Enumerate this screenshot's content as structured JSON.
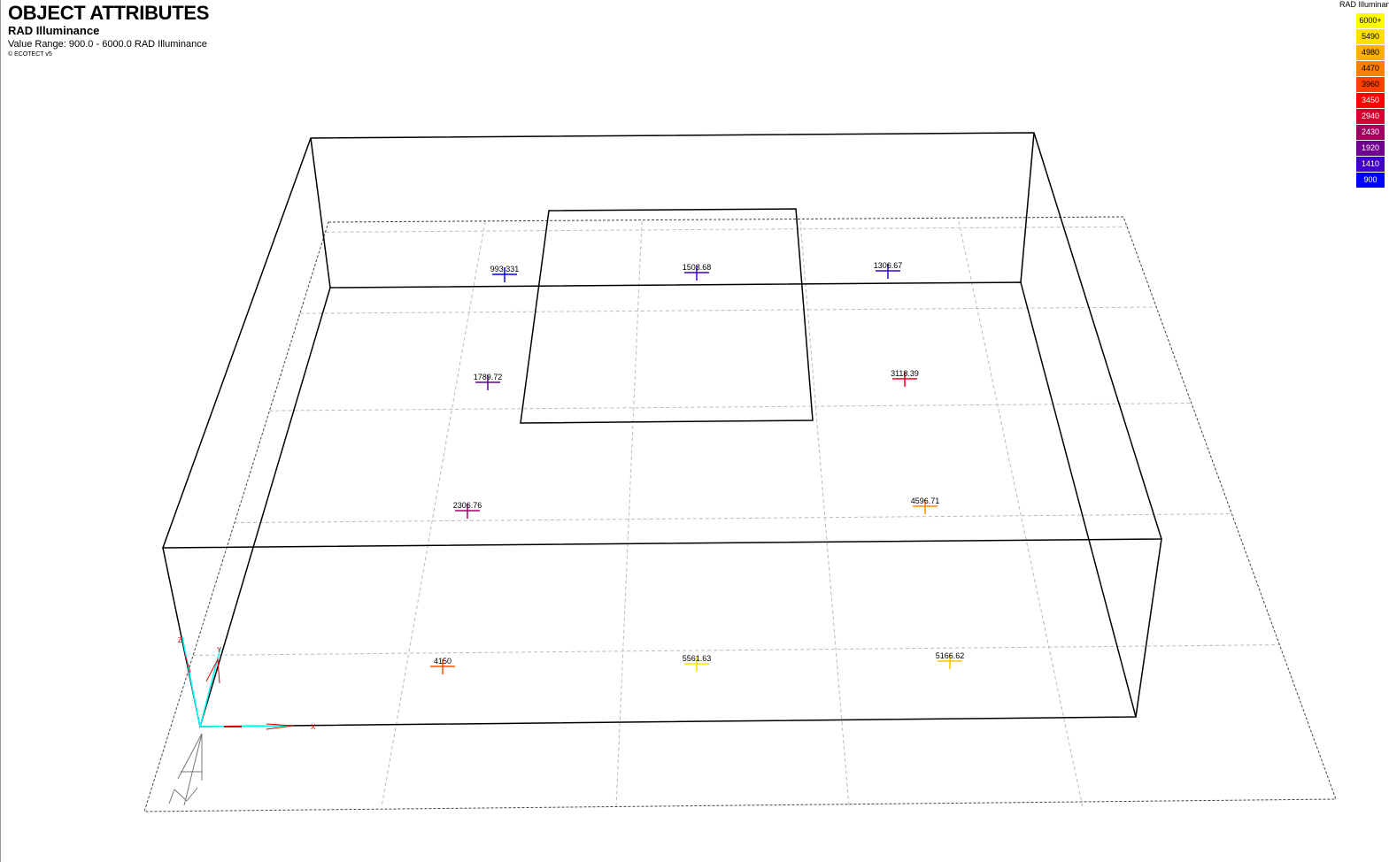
{
  "header": {
    "title": "OBJECT ATTRIBUTES",
    "subtitle": "RAD Illuminance",
    "value_range": "Value Range: 900.0 - 6000.0 RAD Illuminance",
    "copyright": "© ECOTECT v5"
  },
  "legend": {
    "title": "RAD Illuminance",
    "items": [
      {
        "label": "6000+",
        "color": "#ffff00",
        "text": "#000"
      },
      {
        "label": "5490",
        "color": "#ffe000",
        "text": "#000"
      },
      {
        "label": "4980",
        "color": "#ffb000",
        "text": "#000"
      },
      {
        "label": "4470",
        "color": "#ff8000",
        "text": "#000"
      },
      {
        "label": "3960",
        "color": "#ff4000",
        "text": "#000"
      },
      {
        "label": "3450",
        "color": "#ff0000",
        "text": "#fff"
      },
      {
        "label": "2940",
        "color": "#d80030",
        "text": "#fff"
      },
      {
        "label": "2430",
        "color": "#a00060",
        "text": "#fff"
      },
      {
        "label": "1920",
        "color": "#700090",
        "text": "#fff"
      },
      {
        "label": "1410",
        "color": "#4000c8",
        "text": "#fff"
      },
      {
        "label": "900",
        "color": "#0000ff",
        "text": "#fff"
      }
    ]
  },
  "points": [
    {
      "label": "993.331",
      "value": 993.331,
      "color": "#0000ff"
    },
    {
      "label": "1503.68",
      "value": 1503.68,
      "color": "#4000c8"
    },
    {
      "label": "1306.67",
      "value": 1306.67,
      "color": "#3000d8"
    },
    {
      "label": "1789.72",
      "value": 1789.72,
      "color": "#6000a0"
    },
    {
      "label": "3118.39",
      "value": 3118.39,
      "color": "#e80020"
    },
    {
      "label": "2306.76",
      "value": 2306.76,
      "color": "#a00070"
    },
    {
      "label": "4596.71",
      "value": 4596.71,
      "color": "#ff8800"
    },
    {
      "label": "4150",
      "value": 4150,
      "color": "#ff5000"
    },
    {
      "label": "5561.63",
      "value": 5561.63,
      "color": "#ffe000"
    },
    {
      "label": "5166.62",
      "value": 5166.62,
      "color": "#ffc000"
    }
  ],
  "axes": {
    "x": "X",
    "y": "Y",
    "z": "Z"
  }
}
